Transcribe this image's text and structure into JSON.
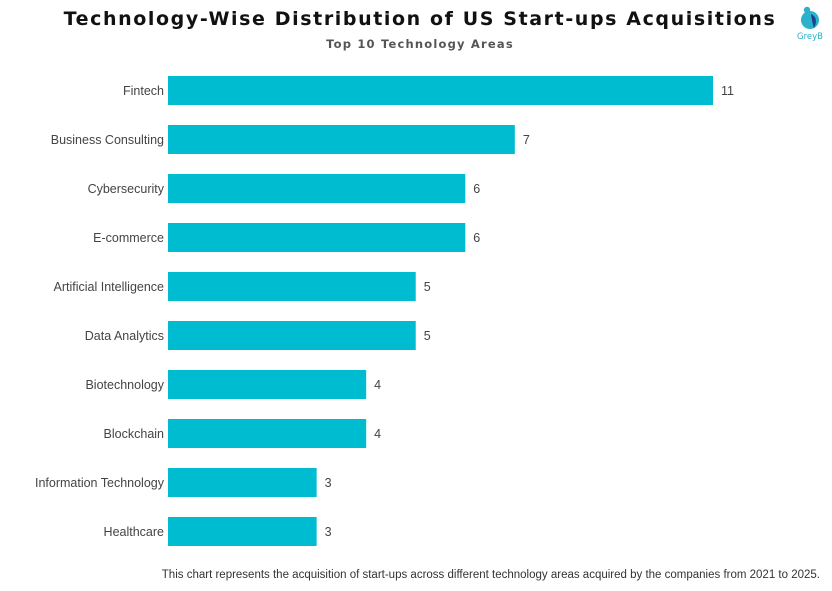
{
  "brand": {
    "logo_text": "GreyB",
    "logo_colors": [
      "#2bb1c9",
      "#1f3f94"
    ]
  },
  "footnote": "This chart represents the acquisition of start-ups across different technology areas acquired by the companies from 2021 to 2025.",
  "chart_data": {
    "type": "bar",
    "orientation": "horizontal",
    "title": "Technology-Wise Distribution of US Start-ups Acquisitions",
    "subtitle": "Top 10 Technology Areas",
    "categories": [
      "Fintech",
      "Business Consulting",
      "Cybersecurity",
      "E-commerce",
      "Artificial Intelligence",
      "Data Analytics",
      "Biotechnology",
      "Blockchain",
      "Information Technology",
      "Healthcare"
    ],
    "values": [
      11,
      7,
      6,
      6,
      5,
      5,
      4,
      4,
      3,
      3
    ],
    "data_labels": [
      "11",
      "7",
      "6",
      "6",
      "5",
      "5",
      "4",
      "4",
      "3",
      "3"
    ],
    "bar_color": "#00bcd0",
    "xlabel": "",
    "ylabel": "",
    "xlim": [
      0,
      11
    ],
    "grid": false,
    "legend": "none",
    "show_x_axis": false
  }
}
